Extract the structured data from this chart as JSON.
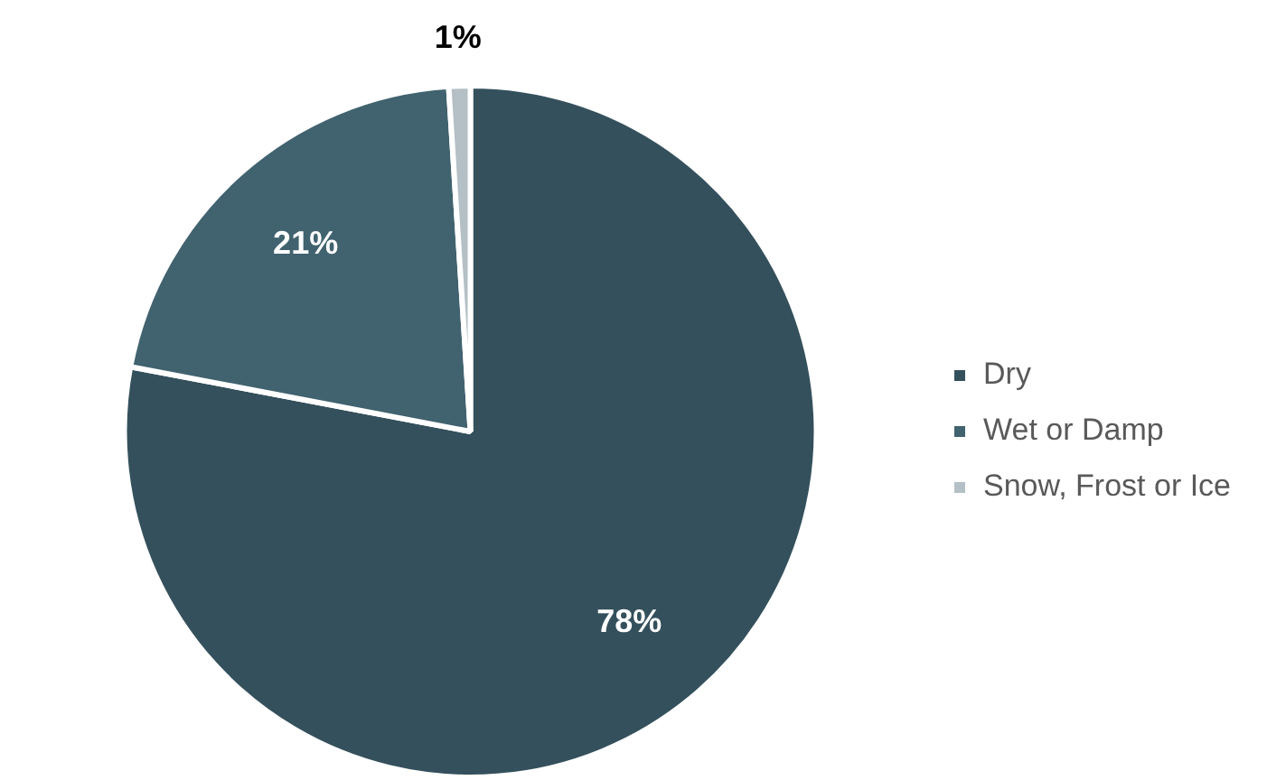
{
  "chart_data": {
    "type": "pie",
    "categories": [
      "Dry",
      "Wet or Damp",
      "Snow, Frost or Ice"
    ],
    "values": [
      78,
      21,
      1
    ],
    "colors": [
      "#34505c",
      "#41626f",
      "#b4c0c6"
    ],
    "value_labels": [
      "78%",
      "21%",
      "1%"
    ],
    "legend": "right"
  }
}
